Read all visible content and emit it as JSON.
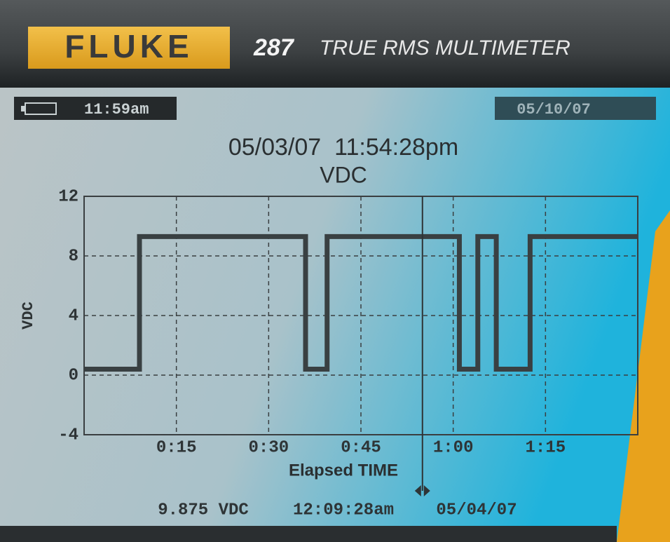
{
  "device": {
    "brand": "FLUKE",
    "model": "287",
    "name": "TRUE RMS MULTIMETER"
  },
  "status": {
    "time": "11:59am",
    "date": "05/10/07"
  },
  "chart_data": {
    "type": "line",
    "title": "05/03/07  11:54:28pm",
    "subtitle": "VDC",
    "y_label": "VDC",
    "x_label": "Elapsed TIME",
    "x": [
      0,
      9,
      9,
      36,
      36,
      39.5,
      39.5,
      61,
      61,
      64,
      64,
      67,
      67,
      72.5,
      72.5,
      90
    ],
    "values": [
      0.4,
      0.4,
      9.3,
      9.3,
      0.4,
      0.4,
      9.3,
      9.3,
      0.4,
      0.4,
      9.3,
      9.3,
      0.4,
      0.4,
      9.3,
      9.3
    ],
    "color": "#394042",
    "xlim": [
      0,
      90
    ],
    "xticks": [
      {
        "value": 15,
        "label": "0:15"
      },
      {
        "value": 30,
        "label": "0:30"
      },
      {
        "value": 45,
        "label": "0:45"
      },
      {
        "value": 60,
        "label": "1:00"
      },
      {
        "value": 75,
        "label": "1:15"
      }
    ],
    "ylim": [
      -4,
      12
    ],
    "yticks": [
      -4,
      0,
      4,
      8,
      12
    ],
    "grid": true,
    "cursor_x": 55
  },
  "readout": {
    "value": "9.875 VDC",
    "time": "12:09:28am",
    "date": "05/04/07"
  }
}
